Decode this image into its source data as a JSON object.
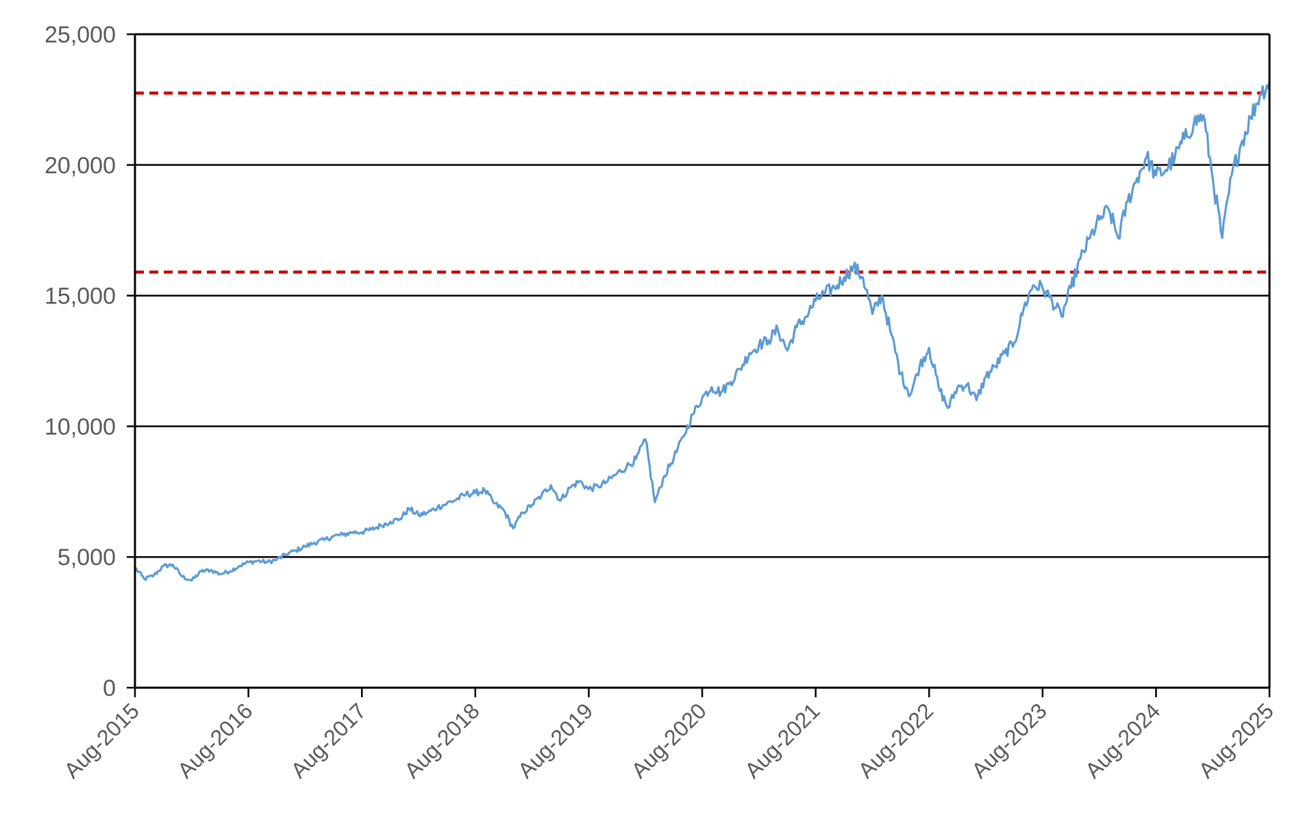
{
  "chart_data": {
    "type": "line",
    "title": "",
    "xlabel": "",
    "ylabel": "",
    "ylim": [
      0,
      25000
    ],
    "y_ticks": [
      {
        "value": 0,
        "label": "0"
      },
      {
        "value": 5000,
        "label": "5,000"
      },
      {
        "value": 10000,
        "label": "10,000"
      },
      {
        "value": 15000,
        "label": "15,000"
      },
      {
        "value": 20000,
        "label": "20,000"
      },
      {
        "value": 25000,
        "label": "25,000"
      }
    ],
    "xlim": [
      "2015-08",
      "2025-08"
    ],
    "x_ticks": [
      {
        "value": "2015-08",
        "label": "Aug-2015"
      },
      {
        "value": "2016-08",
        "label": "Aug-2016"
      },
      {
        "value": "2017-08",
        "label": "Aug-2017"
      },
      {
        "value": "2018-08",
        "label": "Aug-2018"
      },
      {
        "value": "2019-08",
        "label": "Aug-2019"
      },
      {
        "value": "2020-08",
        "label": "Aug-2020"
      },
      {
        "value": "2021-08",
        "label": "Aug-2021"
      },
      {
        "value": "2022-08",
        "label": "Aug-2022"
      },
      {
        "value": "2023-08",
        "label": "Aug-2023"
      },
      {
        "value": "2024-08",
        "label": "Aug-2024"
      },
      {
        "value": "2025-08",
        "label": "Aug-2025"
      }
    ],
    "grid": {
      "horizontal": true,
      "vertical": false
    },
    "legend": "none",
    "series": [
      {
        "color": "#5b9bd5",
        "x": [
          "2015-08",
          "2015-09",
          "2015-10",
          "2015-11",
          "2015-12",
          "2016-01",
          "2016-02",
          "2016-03",
          "2016-04",
          "2016-05",
          "2016-06",
          "2016-07",
          "2016-08",
          "2016-09",
          "2016-10",
          "2016-11",
          "2016-12",
          "2017-01",
          "2017-02",
          "2017-03",
          "2017-04",
          "2017-05",
          "2017-06",
          "2017-07",
          "2017-08",
          "2017-09",
          "2017-10",
          "2017-11",
          "2017-12",
          "2018-01",
          "2018-02",
          "2018-03",
          "2018-04",
          "2018-05",
          "2018-06",
          "2018-07",
          "2018-08",
          "2018-09",
          "2018-10",
          "2018-11",
          "2018-12",
          "2019-01",
          "2019-02",
          "2019-03",
          "2019-04",
          "2019-05",
          "2019-06",
          "2019-07",
          "2019-08",
          "2019-09",
          "2019-10",
          "2019-11",
          "2019-12",
          "2020-01",
          "2020-02",
          "2020-03",
          "2020-04",
          "2020-05",
          "2020-06",
          "2020-07",
          "2020-08",
          "2020-09",
          "2020-10",
          "2020-11",
          "2020-12",
          "2021-01",
          "2021-02",
          "2021-03",
          "2021-04",
          "2021-05",
          "2021-06",
          "2021-07",
          "2021-08",
          "2021-09",
          "2021-10",
          "2021-11",
          "2021-12",
          "2022-01",
          "2022-02",
          "2022-03",
          "2022-04",
          "2022-05",
          "2022-06",
          "2022-07",
          "2022-08",
          "2022-09",
          "2022-10",
          "2022-11",
          "2022-12",
          "2023-01",
          "2023-02",
          "2023-03",
          "2023-04",
          "2023-05",
          "2023-06",
          "2023-07",
          "2023-08",
          "2023-09",
          "2023-10",
          "2023-11",
          "2023-12",
          "2024-01",
          "2024-02",
          "2024-03",
          "2024-04",
          "2024-05",
          "2024-06",
          "2024-07",
          "2024-08",
          "2024-09",
          "2024-10",
          "2024-11",
          "2024-12",
          "2025-01",
          "2025-02",
          "2025-03",
          "2025-04",
          "2025-05",
          "2025-06",
          "2025-07",
          "2025-08"
        ],
        "y": [
          4600,
          4150,
          4300,
          4650,
          4700,
          4250,
          4100,
          4450,
          4500,
          4350,
          4450,
          4650,
          4800,
          4850,
          4800,
          4900,
          5100,
          5250,
          5400,
          5550,
          5650,
          5800,
          5850,
          5950,
          5950,
          6050,
          6200,
          6350,
          6450,
          6850,
          6600,
          6700,
          6900,
          7050,
          7200,
          7400,
          7450,
          7550,
          7050,
          6800,
          6100,
          6700,
          7000,
          7350,
          7750,
          7150,
          7650,
          7900,
          7600,
          7700,
          7900,
          8200,
          8450,
          8750,
          9500,
          7100,
          8100,
          8800,
          9600,
          10450,
          11100,
          11500,
          11300,
          11700,
          12200,
          12800,
          13100,
          13300,
          13700,
          12900,
          13800,
          14200,
          14800,
          15100,
          15300,
          15700,
          16100,
          15700,
          14300,
          15000,
          13500,
          12000,
          11200,
          12300,
          13000,
          11500,
          10700,
          11500,
          11600,
          11000,
          11900,
          12300,
          12800,
          13200,
          14500,
          15400,
          15300,
          14800,
          14200,
          15300,
          16400,
          17200,
          17900,
          18300,
          17200,
          18600,
          19500,
          20300,
          19600,
          19800,
          20300,
          21000,
          21600,
          21900,
          19500,
          17200,
          19600,
          20800,
          21800,
          22700,
          23200
        ]
      }
    ],
    "reference_lines": [
      {
        "value": 22750,
        "color": "#cc0000",
        "style": "dashed"
      },
      {
        "value": 15900,
        "color": "#cc0000",
        "style": "dashed"
      }
    ]
  }
}
